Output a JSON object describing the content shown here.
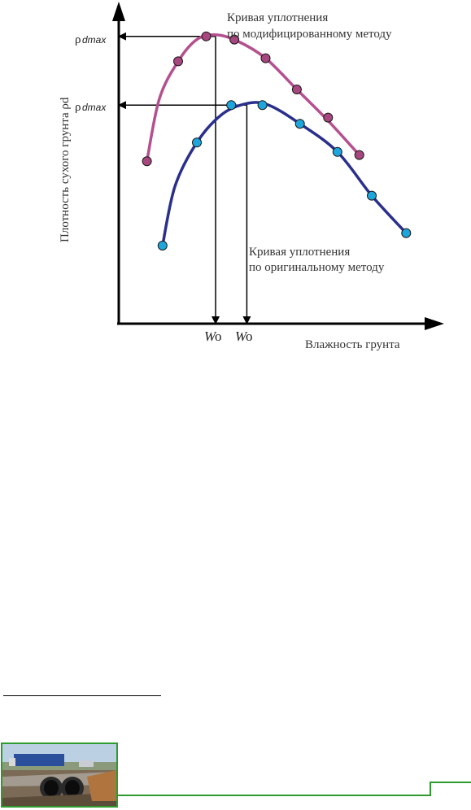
{
  "chart_data": {
    "type": "line",
    "title": "",
    "xlabel": "Влажность грунта",
    "ylabel": "Плотность сухого грунта ρd",
    "y_markers": [
      {
        "label_symbol": "ρ",
        "label_sub": "dmax",
        "series": "modified",
        "y": 0.92
      },
      {
        "label_symbol": "ρ",
        "label_sub": "dmax",
        "series": "original",
        "y": 0.7
      }
    ],
    "x_markers": [
      {
        "label_main": "W",
        "label_sub": "o",
        "series": "modified",
        "x": 0.31
      },
      {
        "label_main": "W",
        "label_sub": "o",
        "series": "original",
        "x": 0.41
      }
    ],
    "xlim": [
      0,
      1
    ],
    "ylim": [
      0,
      1
    ],
    "grid": false,
    "series": [
      {
        "label_line1": "Кривая уплотнения",
        "label_line2": "по модифицированному методу",
        "color": "#b5508f",
        "point_color": "#a8467f",
        "points": [
          {
            "x": 0.09,
            "y": 0.52
          },
          {
            "x": 0.19,
            "y": 0.84
          },
          {
            "x": 0.28,
            "y": 0.92
          },
          {
            "x": 0.37,
            "y": 0.91
          },
          {
            "x": 0.47,
            "y": 0.85
          },
          {
            "x": 0.57,
            "y": 0.75
          },
          {
            "x": 0.67,
            "y": 0.66
          },
          {
            "x": 0.77,
            "y": 0.54
          }
        ],
        "curve": [
          {
            "x": 0.09,
            "y": 0.52
          },
          {
            "x": 0.13,
            "y": 0.72
          },
          {
            "x": 0.19,
            "y": 0.84
          },
          {
            "x": 0.25,
            "y": 0.91
          },
          {
            "x": 0.31,
            "y": 0.925
          },
          {
            "x": 0.38,
            "y": 0.905
          },
          {
            "x": 0.47,
            "y": 0.85
          },
          {
            "x": 0.57,
            "y": 0.75
          },
          {
            "x": 0.67,
            "y": 0.65
          },
          {
            "x": 0.77,
            "y": 0.54
          }
        ]
      },
      {
        "label_line1": "Кривая уплотнения",
        "label_line2": "по оригинальному методу",
        "color": "#2a2f8c",
        "point_color": "#1ea6dc",
        "points": [
          {
            "x": 0.14,
            "y": 0.25
          },
          {
            "x": 0.25,
            "y": 0.58
          },
          {
            "x": 0.36,
            "y": 0.7
          },
          {
            "x": 0.46,
            "y": 0.7
          },
          {
            "x": 0.58,
            "y": 0.64
          },
          {
            "x": 0.7,
            "y": 0.55
          },
          {
            "x": 0.81,
            "y": 0.41
          },
          {
            "x": 0.92,
            "y": 0.29
          }
        ],
        "curve": [
          {
            "x": 0.14,
            "y": 0.25
          },
          {
            "x": 0.18,
            "y": 0.44
          },
          {
            "x": 0.25,
            "y": 0.58
          },
          {
            "x": 0.33,
            "y": 0.67
          },
          {
            "x": 0.41,
            "y": 0.705
          },
          {
            "x": 0.48,
            "y": 0.7
          },
          {
            "x": 0.58,
            "y": 0.64
          },
          {
            "x": 0.7,
            "y": 0.55
          },
          {
            "x": 0.81,
            "y": 0.41
          },
          {
            "x": 0.92,
            "y": 0.29
          }
        ]
      }
    ]
  },
  "footer": {
    "accent_color": "#2e9b2e"
  }
}
